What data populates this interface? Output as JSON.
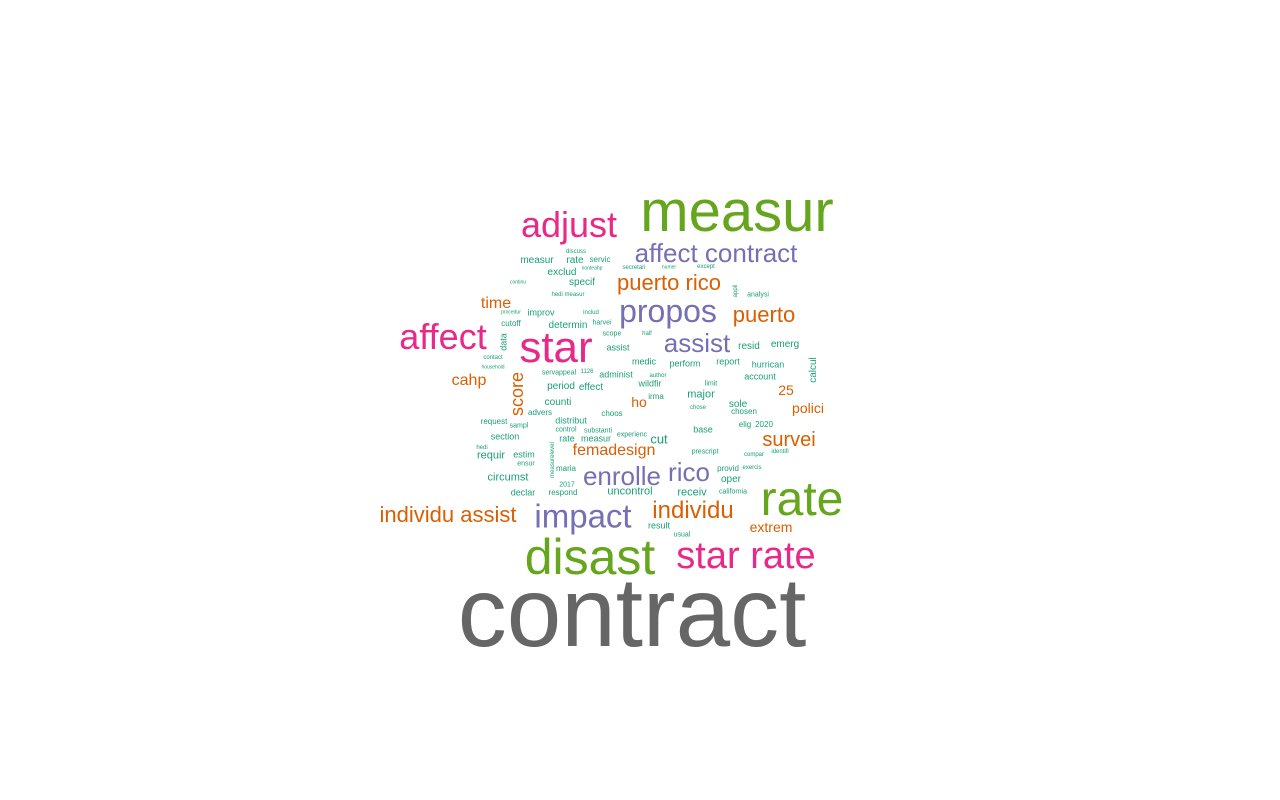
{
  "palette": {
    "teal": "#1b9e77",
    "orange": "#d95f02",
    "purple": "#7570b3",
    "magenta": "#e7298a",
    "green": "#66a61e",
    "gray": "#666666"
  },
  "words": [
    {
      "text": "contract",
      "color": "gray",
      "weight": 1.0
    },
    {
      "text": "measur",
      "color": "green",
      "weight": 0.58
    },
    {
      "text": "star",
      "color": "magenta",
      "weight": 0.45
    },
    {
      "text": "rate",
      "color": "green",
      "weight": 0.52
    },
    {
      "text": "disast",
      "color": "green",
      "weight": 0.55
    },
    {
      "text": "star rate",
      "color": "magenta",
      "weight": 0.42
    },
    {
      "text": "adjust",
      "color": "magenta",
      "weight": 0.4
    },
    {
      "text": "affect",
      "color": "magenta",
      "weight": 0.4
    },
    {
      "text": "impact",
      "color": "purple",
      "weight": 0.38
    },
    {
      "text": "propos",
      "color": "purple",
      "weight": 0.36
    },
    {
      "text": "affect contract",
      "color": "purple",
      "weight": 0.3
    },
    {
      "text": "assist",
      "color": "purple",
      "weight": 0.3
    },
    {
      "text": "enrolle",
      "color": "purple",
      "weight": 0.3
    },
    {
      "text": "rico",
      "color": "purple",
      "weight": 0.3
    },
    {
      "text": "individu assist",
      "color": "orange",
      "weight": 0.26
    },
    {
      "text": "individu",
      "color": "orange",
      "weight": 0.28
    },
    {
      "text": "puerto rico",
      "color": "orange",
      "weight": 0.26
    },
    {
      "text": "puerto",
      "color": "orange",
      "weight": 0.26
    },
    {
      "text": "survei",
      "color": "orange",
      "weight": 0.22
    },
    {
      "text": "score",
      "color": "orange",
      "weight": 0.2
    },
    {
      "text": "femadesign",
      "color": "orange",
      "weight": 0.18
    },
    {
      "text": "time",
      "color": "orange",
      "weight": 0.18
    },
    {
      "text": "cahp",
      "color": "orange",
      "weight": 0.18
    },
    {
      "text": "polici",
      "color": "orange",
      "weight": 0.16
    },
    {
      "text": "extrem",
      "color": "orange",
      "weight": 0.16
    },
    {
      "text": "25",
      "color": "orange",
      "weight": 0.16
    },
    {
      "text": "ho",
      "color": "orange",
      "weight": 0.16
    },
    {
      "text": "measur",
      "color": "teal",
      "weight": 0.1
    },
    {
      "text": "rate",
      "color": "teal",
      "weight": 0.1
    },
    {
      "text": "servic",
      "color": "teal",
      "weight": 0.08
    },
    {
      "text": "exclud",
      "color": "teal",
      "weight": 0.1
    },
    {
      "text": "specif",
      "color": "teal",
      "weight": 0.1
    },
    {
      "text": "improv",
      "color": "teal",
      "weight": 0.08
    },
    {
      "text": "determin",
      "color": "teal",
      "weight": 0.1
    },
    {
      "text": "assist",
      "color": "teal",
      "weight": 0.08
    },
    {
      "text": "resid",
      "color": "teal",
      "weight": 0.1
    },
    {
      "text": "emerg",
      "color": "teal",
      "weight": 0.1
    },
    {
      "text": "report",
      "color": "teal",
      "weight": 0.09
    },
    {
      "text": "hurrican",
      "color": "teal",
      "weight": 0.09
    },
    {
      "text": "calcul",
      "color": "teal",
      "weight": 0.1
    },
    {
      "text": "account",
      "color": "teal",
      "weight": 0.09
    },
    {
      "text": "perform",
      "color": "teal",
      "weight": 0.09
    },
    {
      "text": "medic",
      "color": "teal",
      "weight": 0.09
    },
    {
      "text": "administ",
      "color": "teal",
      "weight": 0.09
    },
    {
      "text": "counti",
      "color": "teal",
      "weight": 0.1
    },
    {
      "text": "effect",
      "color": "teal",
      "weight": 0.1
    },
    {
      "text": "period",
      "color": "teal",
      "weight": 0.1
    },
    {
      "text": "wildfir",
      "color": "teal",
      "weight": 0.09
    },
    {
      "text": "irma",
      "color": "teal",
      "weight": 0.08
    },
    {
      "text": "major",
      "color": "teal",
      "weight": 0.11
    },
    {
      "text": "sole",
      "color": "teal",
      "weight": 0.1
    },
    {
      "text": "chosen",
      "color": "teal",
      "weight": 0.08
    },
    {
      "text": "elig",
      "color": "teal",
      "weight": 0.08
    },
    {
      "text": "2020",
      "color": "teal",
      "weight": 0.08
    },
    {
      "text": "advers",
      "color": "teal",
      "weight": 0.08
    },
    {
      "text": "distribut",
      "color": "teal",
      "weight": 0.09
    },
    {
      "text": "choos",
      "color": "teal",
      "weight": 0.08
    },
    {
      "text": "request",
      "color": "teal",
      "weight": 0.08
    },
    {
      "text": "sampl",
      "color": "teal",
      "weight": 0.07
    },
    {
      "text": "section",
      "color": "teal",
      "weight": 0.09
    },
    {
      "text": "control",
      "color": "teal",
      "weight": 0.07
    },
    {
      "text": "substanti",
      "color": "teal",
      "weight": 0.07
    },
    {
      "text": "rate",
      "color": "teal",
      "weight": 0.09
    },
    {
      "text": "measur",
      "color": "teal",
      "weight": 0.09
    },
    {
      "text": "experienc",
      "color": "teal",
      "weight": 0.07
    },
    {
      "text": "cut",
      "color": "teal",
      "weight": 0.13
    },
    {
      "text": "base",
      "color": "teal",
      "weight": 0.09
    },
    {
      "text": "requir",
      "color": "teal",
      "weight": 0.11
    },
    {
      "text": "estim",
      "color": "teal",
      "weight": 0.09
    },
    {
      "text": "ensur",
      "color": "teal",
      "weight": 0.07
    },
    {
      "text": "maria",
      "color": "teal",
      "weight": 0.08
    },
    {
      "text": "2017",
      "color": "teal",
      "weight": 0.07
    },
    {
      "text": "circumst",
      "color": "teal",
      "weight": 0.11
    },
    {
      "text": "declar",
      "color": "teal",
      "weight": 0.09
    },
    {
      "text": "respond",
      "color": "teal",
      "weight": 0.08
    },
    {
      "text": "uncontrol",
      "color": "teal",
      "weight": 0.11
    },
    {
      "text": "receiv",
      "color": "teal",
      "weight": 0.11
    },
    {
      "text": "oper",
      "color": "teal",
      "weight": 0.1
    },
    {
      "text": "provid",
      "color": "teal",
      "weight": 0.08
    },
    {
      "text": "california",
      "color": "teal",
      "weight": 0.07
    },
    {
      "text": "result",
      "color": "teal",
      "weight": 0.09
    },
    {
      "text": "usual",
      "color": "teal",
      "weight": 0.07
    },
    {
      "text": "prescript",
      "color": "teal",
      "weight": 0.07
    },
    {
      "text": "limit",
      "color": "teal",
      "weight": 0.07
    },
    {
      "text": "data",
      "color": "teal",
      "weight": 0.09
    },
    {
      "text": "cutoff",
      "color": "teal",
      "weight": 0.08
    },
    {
      "text": "harvei",
      "color": "teal",
      "weight": 0.07
    },
    {
      "text": "scope",
      "color": "teal",
      "weight": 0.07
    },
    {
      "text": "half",
      "color": "teal",
      "weight": 0.06
    },
    {
      "text": "analysi",
      "color": "teal",
      "weight": 0.07
    },
    {
      "text": "except",
      "color": "teal",
      "weight": 0.06
    },
    {
      "text": "numer",
      "color": "teal",
      "weight": 0.05
    },
    {
      "text": "secretari",
      "color": "teal",
      "weight": 0.06
    },
    {
      "text": "nonteahp",
      "color": "teal",
      "weight": 0.05
    },
    {
      "text": "discuss",
      "color": "teal",
      "weight": 0.06
    },
    {
      "text": "continu",
      "color": "teal",
      "weight": 0.05
    },
    {
      "text": "hedi measur",
      "color": "teal",
      "weight": 0.06
    },
    {
      "text": "procedur",
      "color": "teal",
      "weight": 0.05
    },
    {
      "text": "includ",
      "color": "teal",
      "weight": 0.06
    },
    {
      "text": "contact",
      "color": "teal",
      "weight": 0.06
    },
    {
      "text": "household",
      "color": "teal",
      "weight": 0.05
    },
    {
      "text": "servappeal",
      "color": "teal",
      "weight": 0.07
    },
    {
      "text": "chose",
      "color": "teal",
      "weight": 0.06
    },
    {
      "text": "identifi",
      "color": "teal",
      "weight": 0.06
    },
    {
      "text": "compar",
      "color": "teal",
      "weight": 0.06
    },
    {
      "text": "exercis",
      "color": "teal",
      "weight": 0.06
    },
    {
      "text": "hedi",
      "color": "teal",
      "weight": 0.06
    },
    {
      "text": "measurelevel",
      "color": "teal",
      "weight": 0.06
    },
    {
      "text": "appli",
      "color": "teal",
      "weight": 0.06
    },
    {
      "text": "author",
      "color": "teal",
      "weight": 0.06
    },
    {
      "text": "1126",
      "color": "teal",
      "weight": 0.06
    }
  ]
}
